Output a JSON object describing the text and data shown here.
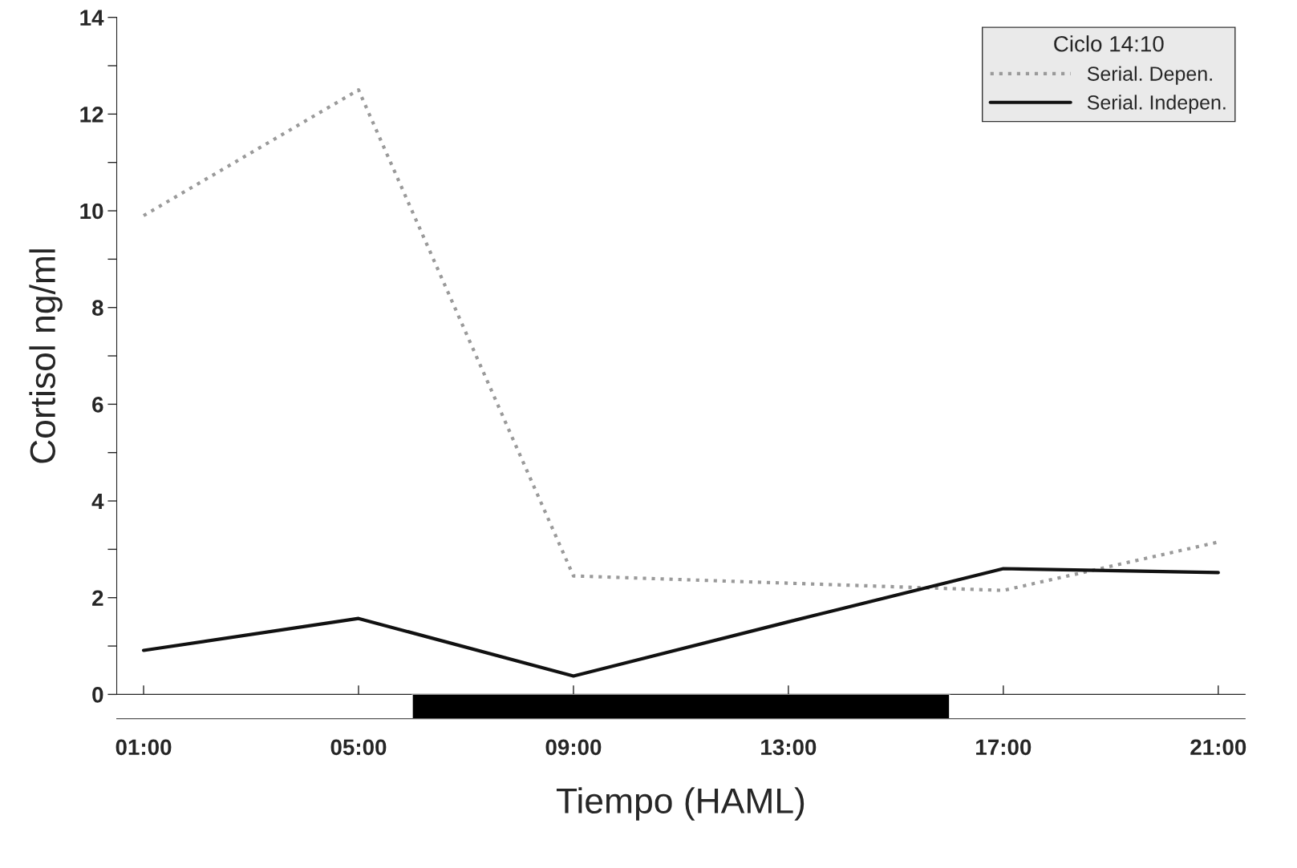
{
  "chart_data": [
    {
      "type": "line",
      "ylabel": "Cortisol ng/ml",
      "legend_title": "Ciclo 14:10",
      "legend": "top right",
      "x": [
        1,
        5,
        9,
        13,
        17,
        21
      ],
      "series": [
        {
          "name": "Serial. Depen.",
          "color": "#9a9a9a",
          "line_style": "dotted",
          "values": [
            9.9,
            12.5,
            2.45,
            2.3,
            2.15,
            3.15
          ]
        },
        {
          "name": "Serial. Indepen.",
          "color": "#111111",
          "line_style": "solid",
          "values": [
            0.91,
            1.57,
            0.38,
            1.5,
            2.6,
            2.52
          ]
        }
      ],
      "xlim": [
        0.5,
        21.5
      ],
      "ylim": [
        0,
        14
      ],
      "xticks": [
        1,
        5,
        9,
        13,
        17,
        21
      ],
      "yticks": [
        0,
        {
          "value": 1,
          "label": null
        },
        2,
        {
          "value": 3,
          "label": null
        },
        4,
        {
          "value": 5,
          "label": null
        },
        6,
        {
          "value": 7,
          "label": null
        },
        8,
        {
          "value": 9,
          "label": null
        },
        10,
        {
          "value": 11,
          "label": null
        },
        12,
        {
          "value": 13,
          "label": null
        },
        14
      ],
      "tick_labels": "y",
      "grid": false,
      "marker": "none"
    },
    {
      "type": "bar",
      "orientation": "horizontal",
      "xlabel": "Tiempo (HAML)",
      "categories": [
        null
      ],
      "base": [
        6
      ],
      "values": [
        10
      ],
      "colors": [
        "#000000"
      ],
      "xlim": [
        0.5,
        21.5
      ],
      "xticks": [
        {
          "value": 1,
          "label": "01:00"
        },
        {
          "value": 5,
          "label": "05:00"
        },
        {
          "value": 9,
          "label": "09:00"
        },
        {
          "value": 13,
          "label": "13:00"
        },
        {
          "value": 17,
          "label": "17:00"
        },
        {
          "value": 21,
          "label": "21:00"
        }
      ],
      "tick_labels": "x",
      "grid": false
    }
  ]
}
